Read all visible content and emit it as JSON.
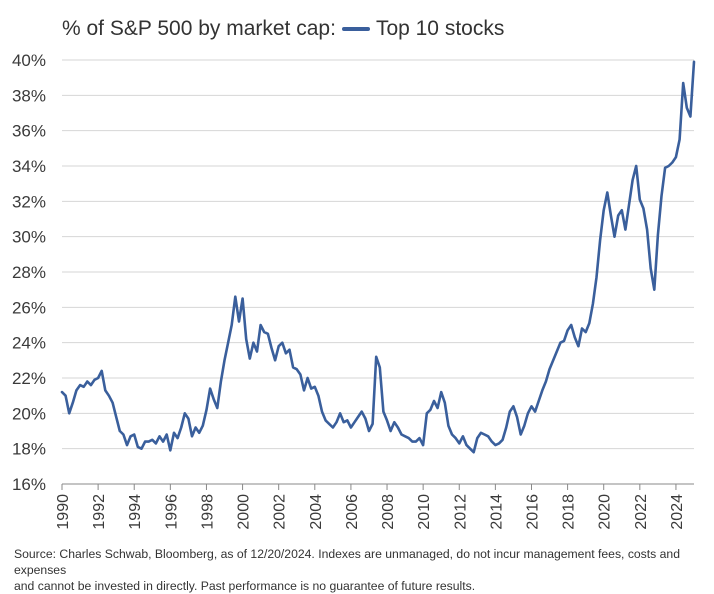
{
  "chart_data": {
    "type": "line",
    "title": "% of S&P 500 by market cap:",
    "legend": [
      {
        "name": "Top 10 stocks",
        "color": "#3a5f9c"
      }
    ],
    "legend_placement": "top, inline with title",
    "xlabel": "",
    "ylabel": "",
    "ylim": [
      16,
      40
    ],
    "xlim": [
      1990,
      2025
    ],
    "grid": "horizontal",
    "y_ticks": [
      "16%",
      "18%",
      "20%",
      "22%",
      "24%",
      "26%",
      "28%",
      "30%",
      "32%",
      "34%",
      "36%",
      "38%",
      "40%"
    ],
    "y_tick_values": [
      16,
      18,
      20,
      22,
      24,
      26,
      28,
      30,
      32,
      34,
      36,
      38,
      40
    ],
    "x_ticks": [
      "1990",
      "1992",
      "1994",
      "1996",
      "1998",
      "2000",
      "2002",
      "2004",
      "2006",
      "2008",
      "2010",
      "2012",
      "2014",
      "2016",
      "2018",
      "2020",
      "2022",
      "2024"
    ],
    "x_tick_values": [
      1990,
      1992,
      1994,
      1996,
      1998,
      2000,
      2002,
      2004,
      2006,
      2008,
      2010,
      2012,
      2014,
      2016,
      2018,
      2020,
      2022,
      2024
    ],
    "series": [
      {
        "name": "Top 10 stocks",
        "color": "#3a5f9c",
        "x": [
          1990.0,
          1990.2,
          1990.4,
          1990.6,
          1990.8,
          1991.0,
          1991.2,
          1991.4,
          1991.6,
          1991.8,
          1992.0,
          1992.2,
          1992.4,
          1992.6,
          1992.8,
          1993.0,
          1993.2,
          1993.4,
          1993.6,
          1993.8,
          1994.0,
          1994.2,
          1994.4,
          1994.6,
          1994.8,
          1995.0,
          1995.2,
          1995.4,
          1995.6,
          1995.8,
          1996.0,
          1996.2,
          1996.4,
          1996.6,
          1996.8,
          1997.0,
          1997.2,
          1997.4,
          1997.6,
          1997.8,
          1998.0,
          1998.2,
          1998.4,
          1998.6,
          1998.8,
          1999.0,
          1999.2,
          1999.4,
          1999.6,
          1999.8,
          2000.0,
          2000.2,
          2000.4,
          2000.6,
          2000.8,
          2001.0,
          2001.2,
          2001.4,
          2001.6,
          2001.8,
          2002.0,
          2002.2,
          2002.4,
          2002.6,
          2002.8,
          2003.0,
          2003.2,
          2003.4,
          2003.6,
          2003.8,
          2004.0,
          2004.2,
          2004.4,
          2004.6,
          2004.8,
          2005.0,
          2005.2,
          2005.4,
          2005.6,
          2005.8,
          2006.0,
          2006.2,
          2006.4,
          2006.6,
          2006.8,
          2007.0,
          2007.2,
          2007.4,
          2007.6,
          2007.8,
          2008.0,
          2008.2,
          2008.4,
          2008.6,
          2008.8,
          2009.0,
          2009.2,
          2009.4,
          2009.6,
          2009.8,
          2010.0,
          2010.2,
          2010.4,
          2010.6,
          2010.8,
          2011.0,
          2011.2,
          2011.4,
          2011.6,
          2011.8,
          2012.0,
          2012.2,
          2012.4,
          2012.6,
          2012.8,
          2013.0,
          2013.2,
          2013.4,
          2013.6,
          2013.8,
          2014.0,
          2014.2,
          2014.4,
          2014.6,
          2014.8,
          2015.0,
          2015.2,
          2015.4,
          2015.6,
          2015.8,
          2016.0,
          2016.2,
          2016.4,
          2016.6,
          2016.8,
          2017.0,
          2017.2,
          2017.4,
          2017.6,
          2017.8,
          2018.0,
          2018.2,
          2018.4,
          2018.6,
          2018.8,
          2019.0,
          2019.2,
          2019.4,
          2019.6,
          2019.8,
          2020.0,
          2020.2,
          2020.4,
          2020.6,
          2020.8,
          2021.0,
          2021.2,
          2021.4,
          2021.6,
          2021.8,
          2022.0,
          2022.2,
          2022.4,
          2022.6,
          2022.8,
          2023.0,
          2023.2,
          2023.4,
          2023.6,
          2023.8,
          2024.0,
          2024.2,
          2024.4,
          2024.6,
          2024.8,
          2025.0
        ],
        "values": [
          21.2,
          21.0,
          20.0,
          20.6,
          21.3,
          21.6,
          21.5,
          21.8,
          21.6,
          21.9,
          22.0,
          22.4,
          21.3,
          21.0,
          20.6,
          19.8,
          19.0,
          18.8,
          18.2,
          18.7,
          18.8,
          18.1,
          18.0,
          18.4,
          18.4,
          18.5,
          18.3,
          18.7,
          18.4,
          18.8,
          17.9,
          18.9,
          18.6,
          19.2,
          20.0,
          19.7,
          18.7,
          19.2,
          18.9,
          19.3,
          20.2,
          21.4,
          20.8,
          20.3,
          21.8,
          23.0,
          24.0,
          25.0,
          26.6,
          25.2,
          26.5,
          24.2,
          23.1,
          24.0,
          23.5,
          25.0,
          24.6,
          24.5,
          23.7,
          23.0,
          23.8,
          24.0,
          23.4,
          23.6,
          22.6,
          22.5,
          22.2,
          21.3,
          22.0,
          21.4,
          21.5,
          21.0,
          20.1,
          19.6,
          19.4,
          19.2,
          19.5,
          20.0,
          19.5,
          19.6,
          19.2,
          19.5,
          19.8,
          20.1,
          19.7,
          19.0,
          19.4,
          23.2,
          22.6,
          20.1,
          19.6,
          19.0,
          19.5,
          19.2,
          18.8,
          18.7,
          18.6,
          18.4,
          18.4,
          18.6,
          18.2,
          20.0,
          20.2,
          20.7,
          20.3,
          21.2,
          20.6,
          19.3,
          18.8,
          18.6,
          18.3,
          18.7,
          18.2,
          18.0,
          17.8,
          18.6,
          18.9,
          18.8,
          18.7,
          18.4,
          18.2,
          18.3,
          18.5,
          19.2,
          20.1,
          20.4,
          19.8,
          18.8,
          19.3,
          20.0,
          20.4,
          20.1,
          20.7,
          21.3,
          21.8,
          22.5,
          23.0,
          23.5,
          24.0,
          24.1,
          24.7,
          25.0,
          24.3,
          23.8,
          24.8,
          24.6,
          25.1,
          26.2,
          27.7,
          29.8,
          31.5,
          32.5,
          31.2,
          30.0,
          31.2,
          31.5,
          30.4,
          31.8,
          33.2,
          34.0,
          32.1,
          31.6,
          30.4,
          28.2,
          27.0,
          30.1,
          32.3,
          33.9,
          34.0,
          34.2,
          34.5,
          35.5,
          38.7,
          37.3,
          36.8,
          39.9
        ]
      }
    ]
  },
  "footer": {
    "source_line1": "Source: Charles Schwab, Bloomberg, as of 12/20/2024. Indexes are unmanaged, do not incur management fees, costs and expenses",
    "source_line2": "and cannot be invested in directly. Past performance is no guarantee of future results."
  }
}
